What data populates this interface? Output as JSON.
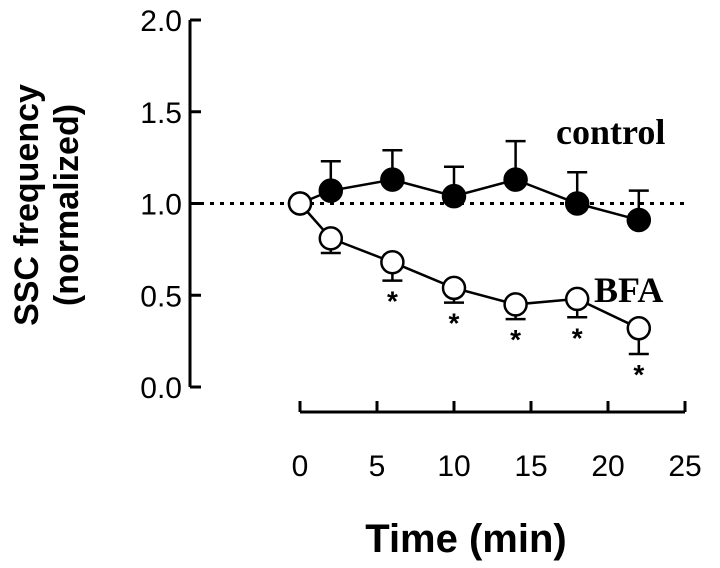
{
  "chart_data": {
    "type": "line",
    "title": "",
    "xlabel": "Time (min)",
    "ylabel_line1": "SSC frequency",
    "ylabel_line2": "(normalized)",
    "xlim": [
      0,
      25
    ],
    "ylim": [
      0,
      2
    ],
    "xticks": [
      0,
      5,
      10,
      15,
      20,
      25
    ],
    "xtick_labels": [
      "0",
      "5",
      "10",
      "15",
      "20",
      "25"
    ],
    "yticks": [
      0,
      0.5,
      1,
      1.5,
      2
    ],
    "ytick_labels": [
      "0.0",
      "0.5",
      "1.0",
      "1.5",
      "2.0"
    ],
    "reference_line": {
      "y": 1.0,
      "style": "dotted"
    },
    "grid": false,
    "series": [
      {
        "name": "control",
        "marker": "filled-circle",
        "x": [
          0,
          2,
          6,
          10,
          14,
          18,
          22
        ],
        "y": [
          1.0,
          1.07,
          1.13,
          1.04,
          1.13,
          1.0,
          0.91
        ],
        "err": [
          0,
          0.16,
          0.16,
          0.16,
          0.21,
          0.17,
          0.16
        ],
        "err_dir": "up"
      },
      {
        "name": "BFA",
        "marker": "open-circle",
        "x": [
          0,
          2,
          6,
          10,
          14,
          18,
          22
        ],
        "y": [
          1.0,
          0.81,
          0.68,
          0.54,
          0.45,
          0.48,
          0.32
        ],
        "err": [
          0,
          0.08,
          0.1,
          0.08,
          0.08,
          0.1,
          0.14
        ],
        "err_dir": "down",
        "significance": [
          false,
          false,
          true,
          true,
          true,
          true,
          true
        ],
        "sig_symbol": "*"
      }
    ]
  }
}
